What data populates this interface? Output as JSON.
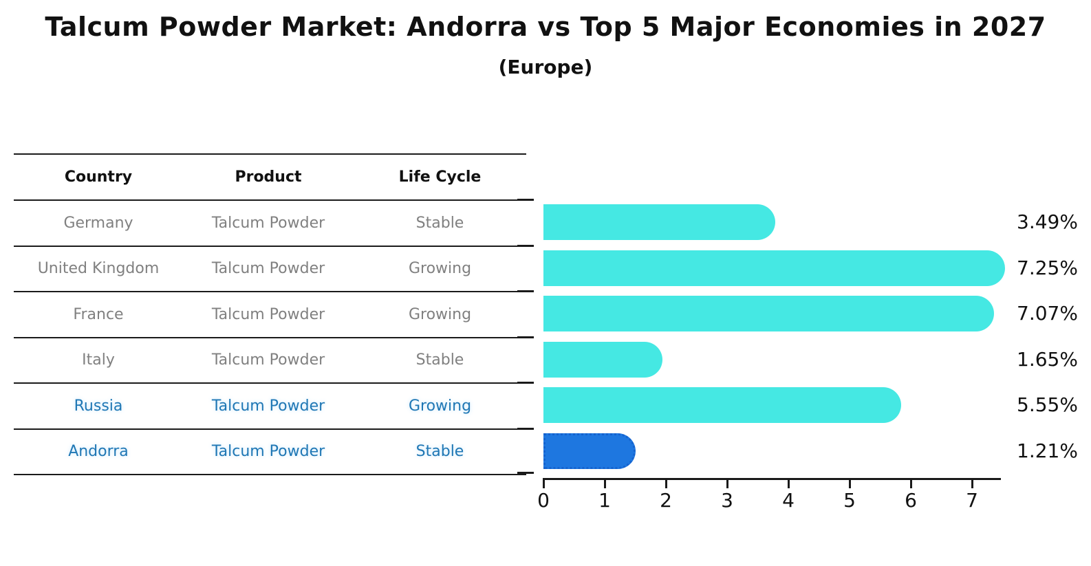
{
  "title": "Talcum Powder Market: Andorra vs Top 5 Major Economies in 2027",
  "subtitle": "(Europe)",
  "table": {
    "headers": [
      "Country",
      "Product",
      "Life Cycle"
    ],
    "rows": [
      {
        "country": "Germany",
        "product": "Talcum Powder",
        "life_cycle": "Stable",
        "highlight": false
      },
      {
        "country": "United Kingdom",
        "product": "Talcum Powder",
        "life_cycle": "Growing",
        "highlight": false
      },
      {
        "country": "France",
        "product": "Talcum Powder",
        "life_cycle": "Growing",
        "highlight": false
      },
      {
        "country": "Italy",
        "product": "Talcum Powder",
        "life_cycle": "Stable",
        "highlight": false
      },
      {
        "country": "Russia",
        "product": "Talcum Powder",
        "life_cycle": "Growing",
        "highlight": true
      }
    ]
  },
  "chart_data": {
    "type": "bar",
    "orientation": "horizontal",
    "title": "Talcum Powder Market: Andorra vs Top 5 Major Economies in 2027 (Europe)",
    "categories": [
      "Germany",
      "United Kingdom",
      "France",
      "Italy",
      "Russia",
      "Andorra"
    ],
    "values": [
      3.49,
      7.25,
      7.07,
      1.65,
      5.55,
      1.21
    ],
    "value_labels": [
      "3.49%",
      "7.25%",
      "7.07%",
      "1.65%",
      "5.55%",
      "1.21%"
    ],
    "highlight_index": 5,
    "xlim": [
      0,
      7.5
    ],
    "xticks": [
      "0",
      "1",
      "2",
      "3",
      "4",
      "5",
      "6",
      "7"
    ],
    "grid": false,
    "legend": false,
    "bar_color": "#45e8e3",
    "highlight_bar_color": "#1e77e0",
    "highlight_border_color": "#1563cf",
    "highlight_text_color": "#1f77b4",
    "row_text_color": "#808080"
  }
}
